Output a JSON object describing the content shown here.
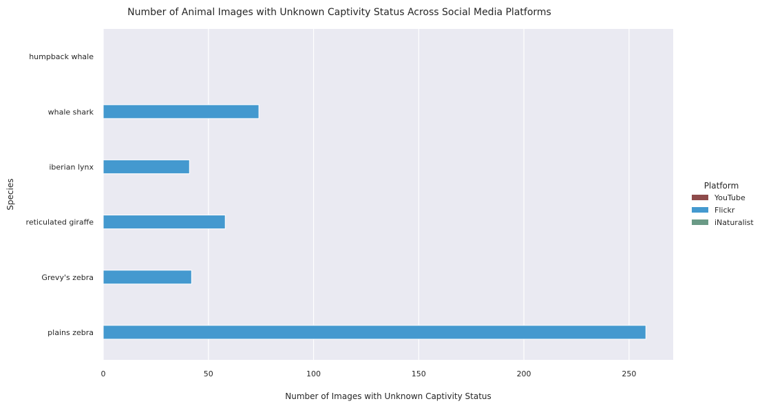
{
  "chart_data": {
    "type": "bar",
    "orientation": "horizontal",
    "title": "Number of Animal Images with Unknown Captivity Status Across Social Media Platforms",
    "xlabel": "Number of Images with Unknown Captivity Status",
    "ylabel": "Species",
    "xlim": [
      0,
      271
    ],
    "xticks": [
      0,
      50,
      100,
      150,
      200,
      250
    ],
    "grid": true,
    "categories": [
      "humpback whale",
      "whale shark",
      "iberian lynx",
      "reticulated giraffe",
      "Grevy's zebra",
      "plains zebra"
    ],
    "series": [
      {
        "name": "YouTube",
        "color": "#8e4b4b",
        "values": [
          0,
          0,
          0,
          0,
          0,
          0
        ]
      },
      {
        "name": "Flickr",
        "color": "#4499cf",
        "values": [
          0,
          74,
          41,
          58,
          42,
          258
        ]
      },
      {
        "name": "iNaturalist",
        "color": "#6a9a86",
        "values": [
          0,
          0,
          0,
          0,
          0,
          0
        ]
      }
    ],
    "legend": {
      "title": "Platform",
      "position": "right"
    },
    "colors": {
      "plot_background": "#eaeaf2",
      "grid": "#ffffff"
    }
  }
}
